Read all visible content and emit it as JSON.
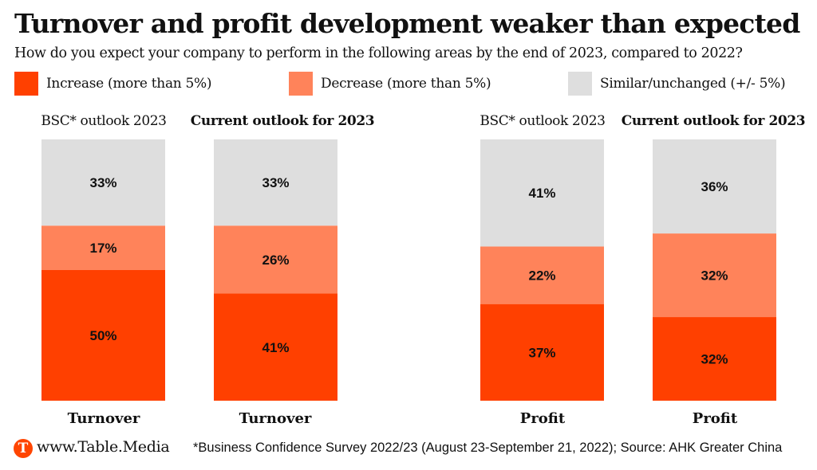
{
  "header": {
    "title": "Turnover and profit development weaker than expected",
    "subtitle": "How do you expect your company to perform in the following areas by the end of 2023, compared to 2022?"
  },
  "footer": {
    "logo_letter": "T",
    "site": "www.Table.Media",
    "source": "*Business Confidence Survey 2022/23 (August 23-September 21, 2022); Source: AHK Greater China"
  },
  "chart_data": {
    "type": "bar",
    "stacked": true,
    "orientation": "vertical",
    "title": "Turnover and profit development weaker than expected",
    "subtitle": "How do you expect your company to perform in the following areas by the end of 2023, compared to 2022?",
    "legend_position": "top",
    "column_headers": [
      "BSC* outlook 2023",
      "Current outlook for 2023",
      "BSC* outlook 2023",
      "Current outlook for 2023"
    ],
    "column_header_bold": [
      false,
      true,
      false,
      true
    ],
    "categories": [
      "Turnover",
      "Turnover",
      "Profit",
      "Profit"
    ],
    "series": [
      {
        "name": "Increase (more than 5%)",
        "color": "#ff4000",
        "values": [
          50,
          41,
          37,
          32
        ],
        "labels": [
          "50%",
          "41%",
          "37%",
          "32%"
        ]
      },
      {
        "name": "Decrease (more than 5%)",
        "color": "#ff835a",
        "values": [
          17,
          26,
          22,
          32
        ],
        "labels": [
          "17%",
          "26%",
          "22%",
          "32%"
        ]
      },
      {
        "name": "Similar/unchanged (+/- 5%)",
        "color": "#dedede",
        "values": [
          33,
          33,
          41,
          36
        ],
        "labels": [
          "33%",
          "33%",
          "41%",
          "36%"
        ]
      }
    ],
    "ylim": [
      0,
      100
    ],
    "unit": "%",
    "grid": false
  }
}
